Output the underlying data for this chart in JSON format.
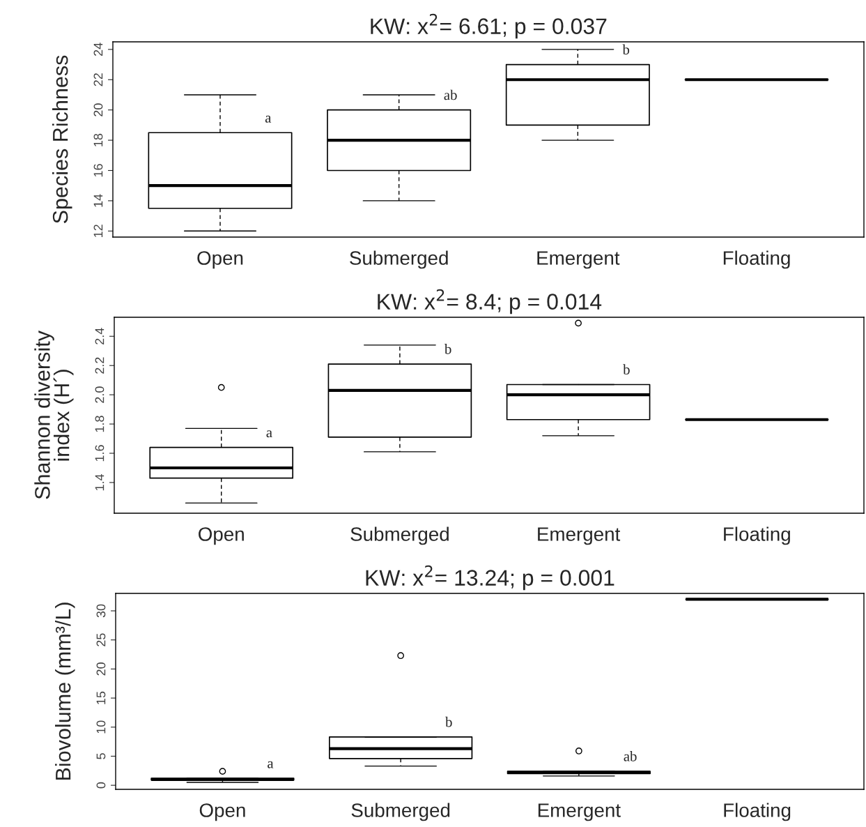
{
  "chart_data": [
    {
      "type": "box",
      "title": "KW: x$^{2}$= 6.61; p = 0.037",
      "ylabel": "Species Richness",
      "categories": [
        "Open",
        "Submerged",
        "Emergent",
        "Floating"
      ],
      "boxes": [
        {
          "low": 12,
          "q1": 13.5,
          "median": 15,
          "q3": 18.5,
          "high": 21
        },
        {
          "low": 14,
          "q1": 16,
          "median": 18,
          "q3": 20,
          "high": 21
        },
        {
          "low": 18,
          "q1": 19,
          "median": 22,
          "q3": 23,
          "high": 24
        },
        {
          "low": 22,
          "q1": 22,
          "median": 22,
          "q3": 22,
          "high": 22
        }
      ],
      "ylim": [
        11.6,
        24.5
      ],
      "yticks": [
        12,
        14,
        16,
        18,
        20,
        22,
        24
      ],
      "grid": false,
      "annotations": [
        "a",
        "ab",
        "b"
      ]
    },
    {
      "type": "box",
      "title": "KW: x$^{2}$= 8.4; p = 0.014",
      "ylabel": "Shannon diversity\nindex (H´)",
      "categories": [
        "Open",
        "Submerged",
        "Emergent",
        "Floating"
      ],
      "boxes": [
        {
          "low": 1.26,
          "q1": 1.43,
          "median": 1.5,
          "q3": 1.64,
          "high": 1.77,
          "outliers": [
            2.05
          ]
        },
        {
          "low": 1.61,
          "q1": 1.71,
          "median": 2.03,
          "q3": 2.21,
          "high": 2.34
        },
        {
          "low": 1.72,
          "q1": 1.83,
          "median": 2.0,
          "q3": 2.07,
          "high": 2.07,
          "outliers": [
            2.49
          ]
        },
        {
          "low": 1.83,
          "q1": 1.83,
          "median": 1.83,
          "q3": 1.83,
          "high": 1.83
        }
      ],
      "ylim": [
        1.19,
        2.53
      ],
      "yticks": [
        1.4,
        1.6,
        1.8,
        {
          "value": 2.0,
          "label": "2.0"
        },
        2.2,
        2.4
      ],
      "grid": false,
      "annotations": [
        "a",
        "b",
        "b"
      ]
    },
    {
      "type": "box",
      "title": "KW: x$^{2}$= 13.24; p = 0.001",
      "ylabel": "Biovolume (mm³/L)",
      "categories": [
        "Open",
        "Submerged",
        "Emergent",
        "Floating"
      ],
      "boxes": [
        {
          "low": 0.5,
          "q1": 0.9,
          "median": 1.0,
          "q3": 1.2,
          "high": 1.2,
          "outliers": [
            2.4
          ]
        },
        {
          "low": 3.3,
          "q1": 4.6,
          "median": 6.3,
          "q3": 8.3,
          "high": 8.3,
          "outliers": [
            22.3
          ]
        },
        {
          "low": 1.6,
          "q1": 2.0,
          "median": 2.2,
          "q3": 2.4,
          "high": 2.4,
          "outliers": [
            5.9
          ]
        },
        {
          "low": 32,
          "q1": 32,
          "median": 32,
          "q3": 32,
          "high": 32
        }
      ],
      "ylim": [
        -0.7,
        33
      ],
      "yticks": [
        0,
        5,
        10,
        15,
        20,
        25,
        30
      ],
      "grid": false,
      "annotations": [
        "a",
        "b",
        "ab"
      ]
    }
  ]
}
